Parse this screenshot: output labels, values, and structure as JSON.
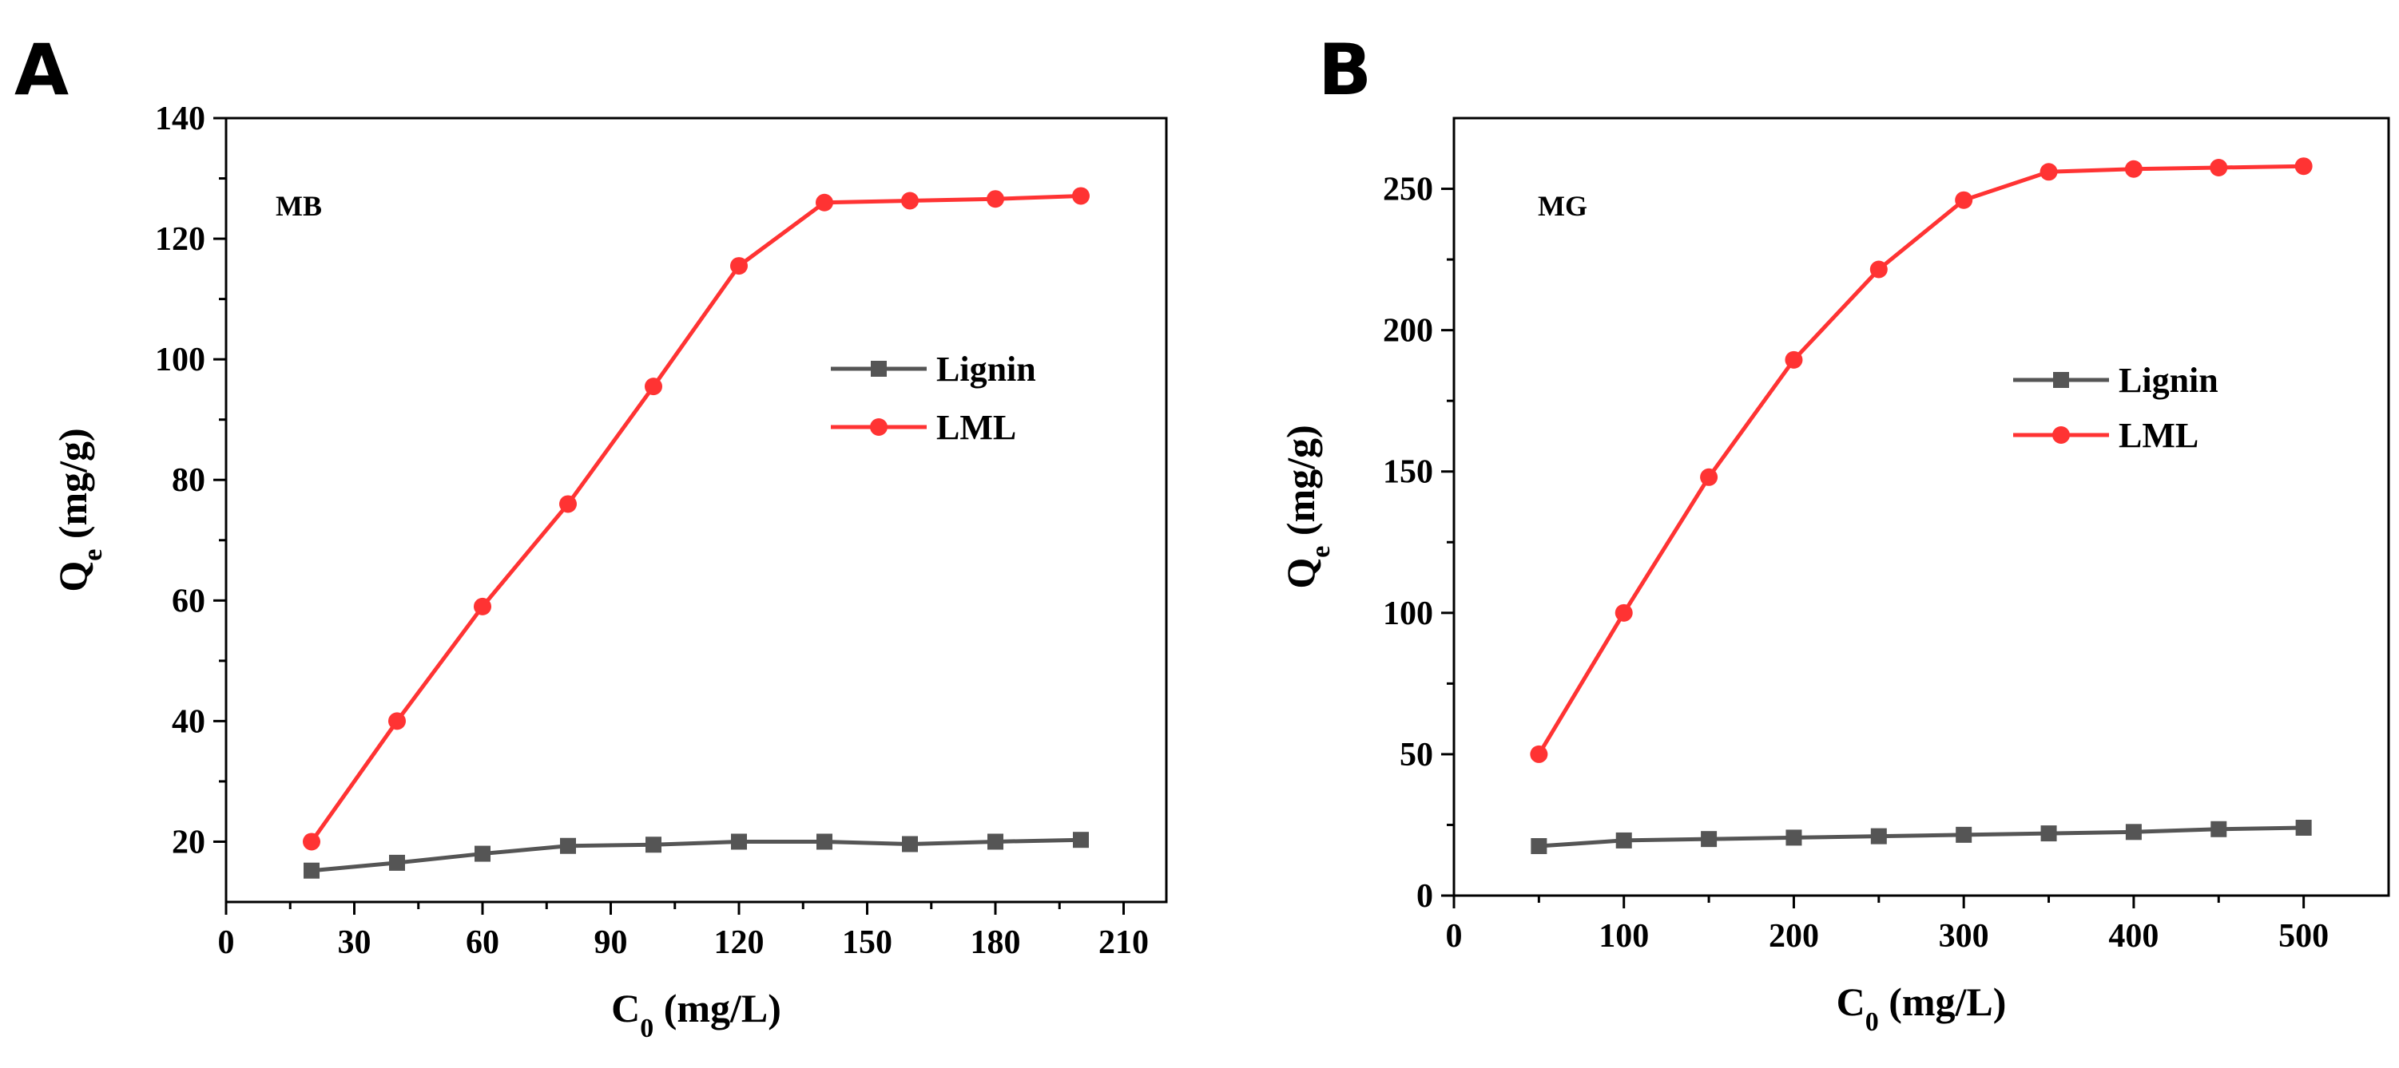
{
  "chart_data": [
    {
      "panel": "A",
      "type": "line",
      "annotation": "MB",
      "xlabel": {
        "main": "C",
        "sub": "0",
        "unit": " (mg/L)"
      },
      "ylabel": {
        "main": "Q",
        "sub": "e",
        "unit": " (mg/g)"
      },
      "xlim": [
        0,
        220
      ],
      "ylim": [
        10,
        140
      ],
      "xticks": [
        0,
        30,
        60,
        90,
        120,
        150,
        180,
        210
      ],
      "yticks": [
        20,
        40,
        60,
        80,
        100,
        120,
        140
      ],
      "legend_position": "center-right",
      "series": [
        {
          "name": "Lignin",
          "color": "#555555",
          "marker": "square",
          "x": [
            20,
            40,
            60,
            80,
            100,
            120,
            140,
            160,
            180,
            200
          ],
          "y": [
            15.2,
            16.5,
            18.0,
            19.3,
            19.5,
            20.0,
            20.0,
            19.6,
            20.0,
            20.3
          ]
        },
        {
          "name": "LML",
          "color": "#ff3333",
          "marker": "circle",
          "x": [
            20,
            40,
            60,
            80,
            100,
            120,
            140,
            160,
            180,
            200
          ],
          "y": [
            20.0,
            40.0,
            59.0,
            76.0,
            95.5,
            115.5,
            126.0,
            126.3,
            126.6,
            127.1
          ]
        }
      ]
    },
    {
      "panel": "B",
      "type": "line",
      "annotation": "MG",
      "xlabel": {
        "main": "C",
        "sub": "0",
        "unit": " (mg/L)"
      },
      "ylabel": {
        "main": "Q",
        "sub": "e",
        "unit": " (mg/g)"
      },
      "xlim": [
        0,
        550
      ],
      "ylim": [
        0,
        275
      ],
      "xticks": [
        0,
        100,
        200,
        300,
        400,
        500
      ],
      "yticks": [
        0,
        50,
        100,
        150,
        200,
        250
      ],
      "legend_position": "center-right",
      "series": [
        {
          "name": "Lignin",
          "color": "#555555",
          "marker": "square",
          "x": [
            50,
            100,
            150,
            200,
            250,
            300,
            350,
            400,
            450,
            500
          ],
          "y": [
            17.5,
            19.5,
            20.0,
            20.5,
            21.0,
            21.5,
            22.0,
            22.5,
            23.5,
            24.0
          ]
        },
        {
          "name": "LML",
          "color": "#ff3333",
          "marker": "circle",
          "x": [
            50,
            100,
            150,
            200,
            250,
            300,
            350,
            400,
            450,
            500
          ],
          "y": [
            50.0,
            100.0,
            148.0,
            189.5,
            221.5,
            246.0,
            256.0,
            257.0,
            257.5,
            258.0
          ]
        }
      ]
    }
  ]
}
